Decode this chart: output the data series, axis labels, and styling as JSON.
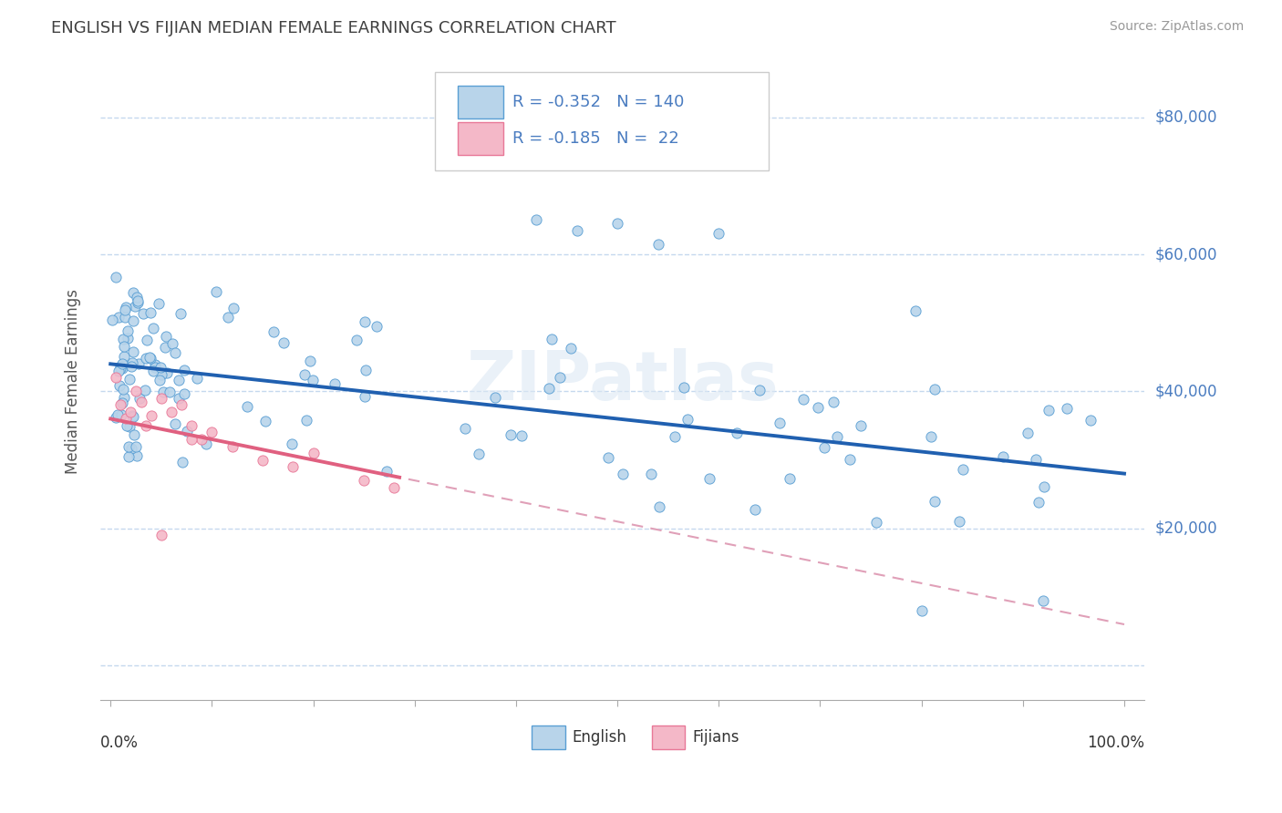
{
  "title": "ENGLISH VS FIJIAN MEDIAN FEMALE EARNINGS CORRELATION CHART",
  "source": "Source: ZipAtlas.com",
  "ylabel": "Median Female Earnings",
  "english_R": -0.352,
  "english_N": 140,
  "fijian_R": -0.185,
  "fijian_N": 22,
  "english_color": "#b8d4ea",
  "fijian_color": "#f4b8c8",
  "english_edge_color": "#5a9fd4",
  "fijian_edge_color": "#e87898",
  "english_line_color": "#2060b0",
  "fijian_line_color": "#e06080",
  "dashed_line_color": "#e0a0b8",
  "title_color": "#404040",
  "axis_color": "#4a7cc0",
  "legend_text_color": "#4a7cc0",
  "watermark_text": "ZIPatlas",
  "ytick_vals": [
    0,
    20000,
    40000,
    60000,
    80000
  ],
  "ylim": [
    -5000,
    88000
  ],
  "xlim": [
    -0.01,
    1.02
  ],
  "eng_line_a": 44000,
  "eng_line_b": -16000,
  "fij_line_a": 36000,
  "fij_line_b": -30000,
  "fij_line_xmax": 0.285
}
